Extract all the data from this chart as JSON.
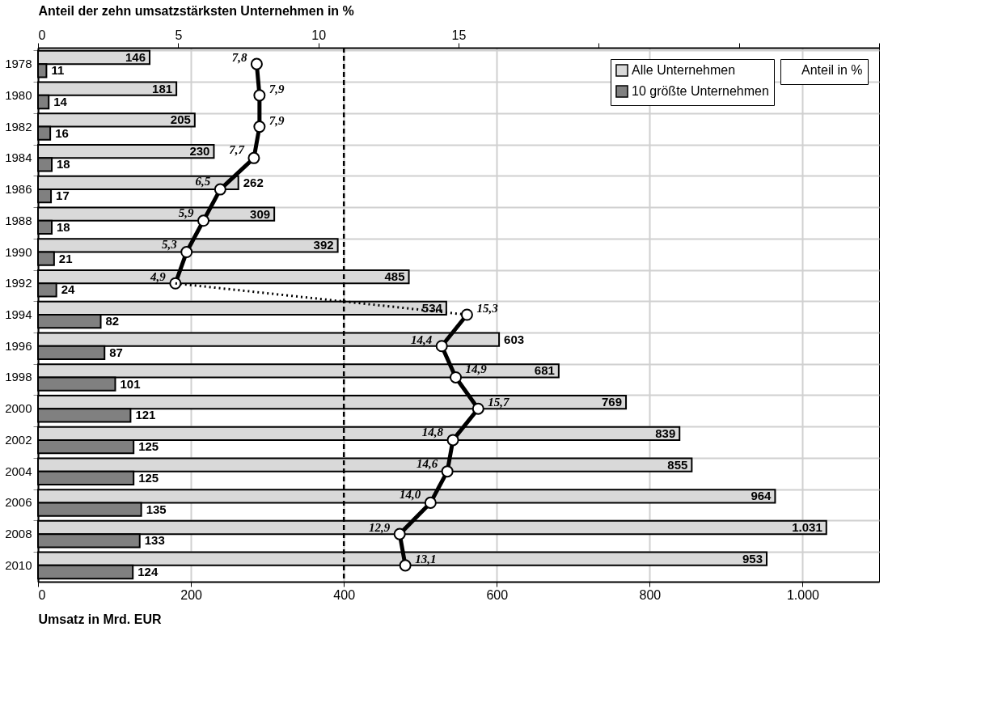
{
  "chart_data": {
    "type": "bar",
    "orientation": "horizontal",
    "categories": [
      "1978",
      "1980",
      "1982",
      "1984",
      "1986",
      "1988",
      "1990",
      "1992",
      "1994",
      "1996",
      "1998",
      "2000",
      "2002",
      "2004",
      "2006",
      "2008",
      "2010"
    ],
    "xlabel": "Umsatz in Mrd. EUR",
    "x2label": "Anteil der zehn umsatzstärksten Unternehmen in %",
    "xlim": [
      0,
      1100
    ],
    "xticks": [
      0,
      200,
      400,
      600,
      800,
      {
        "value": 1000,
        "label": "1.000"
      }
    ],
    "x2lim": [
      0,
      30
    ],
    "x2ticks": [
      0,
      5,
      10,
      15,
      {
        "value": 20,
        "label": null
      },
      {
        "value": 25,
        "label": null
      },
      {
        "value": 30,
        "label": null
      }
    ],
    "grid": true,
    "legend": "top right",
    "ref_lines": [
      {
        "axis": "x",
        "value": 400,
        "line_style": "dashed",
        "color": "#000000"
      }
    ],
    "series": [
      {
        "name": "Alle Unternehmen",
        "type": "bar",
        "color": "#d9d9d9",
        "values": [
          146,
          181,
          205,
          230,
          262,
          309,
          392,
          485,
          534,
          603,
          681,
          769,
          839,
          855,
          964,
          1031,
          953
        ],
        "value_labels": [
          "146",
          "181",
          "205",
          "230",
          "262",
          "309",
          "392",
          "485",
          "534",
          "603",
          "681",
          "769",
          "839",
          "855",
          "964",
          "1.031",
          "953"
        ]
      },
      {
        "name": "10 größte Unternehmen",
        "type": "bar",
        "color": "#808080",
        "values": [
          11,
          14,
          16,
          18,
          17,
          18,
          21,
          24,
          82,
          87,
          101,
          121,
          125,
          125,
          135,
          133,
          124
        ],
        "value_labels": [
          "11",
          "14",
          "16",
          "18",
          "17",
          "18",
          "21",
          "24",
          "82",
          "87",
          "101",
          "121",
          "125",
          "125",
          "135",
          "133",
          "124"
        ]
      },
      {
        "name": "Anteil in %",
        "type": "line",
        "axis": "x2",
        "color": "#000000",
        "marker": "circle",
        "line_style": "solid",
        "values": [
          7.8,
          7.9,
          7.9,
          7.7,
          6.5,
          5.9,
          5.3,
          4.9,
          null,
          null,
          null,
          null,
          null,
          null,
          null,
          null,
          null
        ],
        "value_labels": [
          "7,8",
          "7,9",
          "7,9",
          "7,7",
          "6,5",
          "5,9",
          "5,3",
          "4,9",
          null,
          null,
          null,
          null,
          null,
          null,
          null,
          null,
          null
        ]
      },
      {
        "type": "line",
        "axis": "x2",
        "color": "#000000",
        "marker": "none",
        "line_style": "dotted",
        "values": [
          null,
          null,
          null,
          null,
          null,
          null,
          null,
          4.9,
          15.3,
          null,
          null,
          null,
          null,
          null,
          null,
          null,
          null
        ]
      },
      {
        "type": "line",
        "axis": "x2",
        "color": "#000000",
        "marker": "circle",
        "line_style": "solid",
        "values": [
          null,
          null,
          null,
          null,
          null,
          null,
          null,
          null,
          15.3,
          14.4,
          14.9,
          15.7,
          14.8,
          14.6,
          14.0,
          12.9,
          13.1
        ],
        "value_labels": [
          null,
          null,
          null,
          null,
          null,
          null,
          null,
          null,
          "15,3",
          "14,4",
          "14,9",
          "15,7",
          "14,8",
          "14,6",
          "14,0",
          "12,9",
          "13,1"
        ]
      }
    ]
  }
}
